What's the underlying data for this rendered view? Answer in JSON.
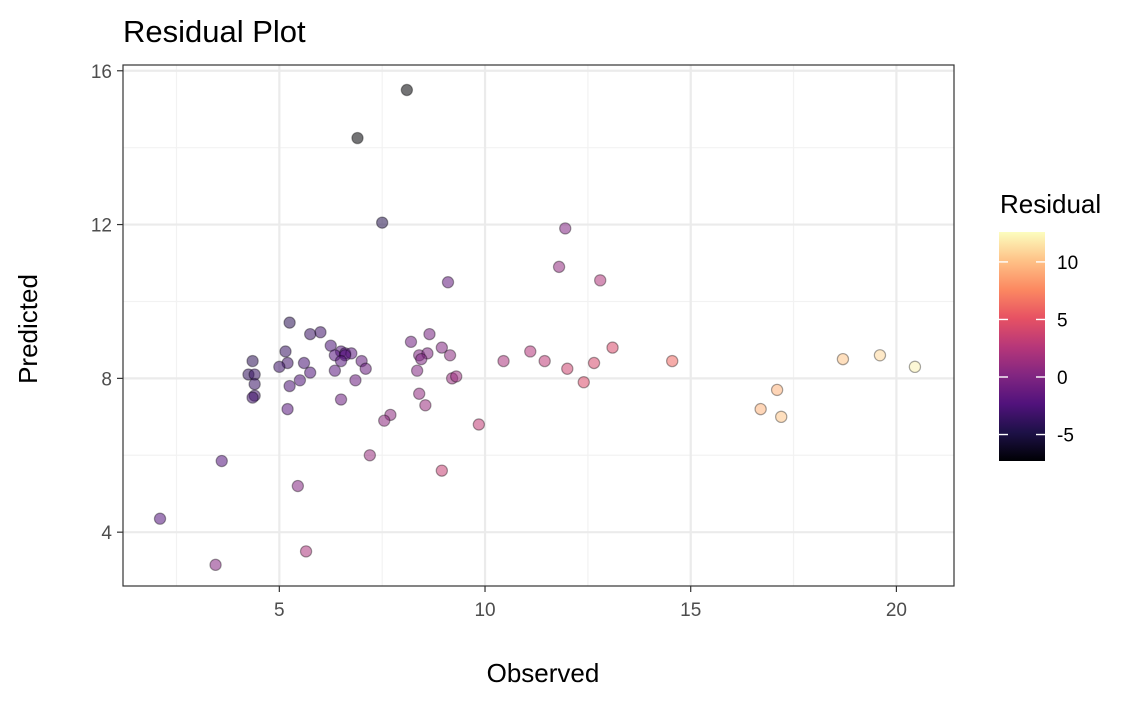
{
  "chart_data": {
    "type": "scatter",
    "title": "Residual Plot",
    "xlabel": "Observed",
    "ylabel": "Predicted",
    "xlim": [
      1.2,
      21.4
    ],
    "ylim": [
      2.6,
      16.15
    ],
    "x_ticks": [
      5,
      10,
      15,
      20
    ],
    "x_tick_labels": [
      "5",
      "10",
      "15",
      "20"
    ],
    "y_ticks": [
      4,
      8,
      12,
      16
    ],
    "y_tick_labels": [
      "4",
      "8",
      "12",
      "16"
    ],
    "grid": true,
    "legend": {
      "title": "Residual",
      "placement": "right",
      "range": [
        -7.3,
        12.6
      ],
      "ticks": [
        -5,
        0,
        5,
        10
      ],
      "tick_labels": [
        "-5",
        "0",
        "5",
        "10"
      ],
      "colormap": "magma",
      "colors": [
        "#000004",
        "#1d1147",
        "#51127c",
        "#822681",
        "#b73779",
        "#e75263",
        "#fc8961",
        "#fec287",
        "#fcfdbf"
      ]
    },
    "points": [
      {
        "x": 8.1,
        "y": 15.5
      },
      {
        "x": 6.9,
        "y": 14.25
      },
      {
        "x": 7.5,
        "y": 12.05
      },
      {
        "x": 11.95,
        "y": 11.9
      },
      {
        "x": 11.8,
        "y": 10.9
      },
      {
        "x": 12.8,
        "y": 10.55
      },
      {
        "x": 9.1,
        "y": 10.5
      },
      {
        "x": 5.25,
        "y": 9.45
      },
      {
        "x": 6.0,
        "y": 9.2
      },
      {
        "x": 5.75,
        "y": 9.15
      },
      {
        "x": 8.65,
        "y": 9.15
      },
      {
        "x": 8.2,
        "y": 8.95
      },
      {
        "x": 6.25,
        "y": 8.85
      },
      {
        "x": 8.95,
        "y": 8.8
      },
      {
        "x": 13.1,
        "y": 8.8
      },
      {
        "x": 5.15,
        "y": 8.7
      },
      {
        "x": 6.5,
        "y": 8.7
      },
      {
        "x": 6.6,
        "y": 8.65
      },
      {
        "x": 6.75,
        "y": 8.65
      },
      {
        "x": 11.1,
        "y": 8.7
      },
      {
        "x": 6.35,
        "y": 8.6
      },
      {
        "x": 6.6,
        "y": 8.6
      },
      {
        "x": 8.4,
        "y": 8.6
      },
      {
        "x": 8.6,
        "y": 8.65
      },
      {
        "x": 9.15,
        "y": 8.6
      },
      {
        "x": 4.35,
        "y": 8.45
      },
      {
        "x": 5.2,
        "y": 8.4
      },
      {
        "x": 5.6,
        "y": 8.4
      },
      {
        "x": 6.5,
        "y": 8.45
      },
      {
        "x": 7.0,
        "y": 8.45
      },
      {
        "x": 8.45,
        "y": 8.5
      },
      {
        "x": 10.45,
        "y": 8.45
      },
      {
        "x": 11.45,
        "y": 8.45
      },
      {
        "x": 12.65,
        "y": 8.4
      },
      {
        "x": 14.55,
        "y": 8.45
      },
      {
        "x": 18.7,
        "y": 8.5
      },
      {
        "x": 19.6,
        "y": 8.6
      },
      {
        "x": 20.45,
        "y": 8.3
      },
      {
        "x": 5.0,
        "y": 8.3
      },
      {
        "x": 6.35,
        "y": 8.2
      },
      {
        "x": 5.75,
        "y": 8.15
      },
      {
        "x": 7.1,
        "y": 8.25
      },
      {
        "x": 8.35,
        "y": 8.2
      },
      {
        "x": 12.0,
        "y": 8.25
      },
      {
        "x": 4.25,
        "y": 8.1
      },
      {
        "x": 4.4,
        "y": 8.1
      },
      {
        "x": 9.2,
        "y": 8.0
      },
      {
        "x": 9.3,
        "y": 8.05
      },
      {
        "x": 5.5,
        "y": 7.95
      },
      {
        "x": 6.85,
        "y": 7.95
      },
      {
        "x": 4.4,
        "y": 7.85
      },
      {
        "x": 12.4,
        "y": 7.9
      },
      {
        "x": 5.25,
        "y": 7.8
      },
      {
        "x": 17.1,
        "y": 7.7
      },
      {
        "x": 4.4,
        "y": 7.55
      },
      {
        "x": 4.35,
        "y": 7.5
      },
      {
        "x": 8.4,
        "y": 7.6
      },
      {
        "x": 6.5,
        "y": 7.45
      },
      {
        "x": 8.55,
        "y": 7.3
      },
      {
        "x": 5.2,
        "y": 7.2
      },
      {
        "x": 16.7,
        "y": 7.2
      },
      {
        "x": 7.7,
        "y": 7.05
      },
      {
        "x": 7.55,
        "y": 6.9
      },
      {
        "x": 17.2,
        "y": 7.0
      },
      {
        "x": 9.85,
        "y": 6.8
      },
      {
        "x": 7.2,
        "y": 6.0
      },
      {
        "x": 3.6,
        "y": 5.85
      },
      {
        "x": 8.95,
        "y": 5.6
      },
      {
        "x": 5.45,
        "y": 5.2
      },
      {
        "x": 2.1,
        "y": 4.35
      },
      {
        "x": 5.65,
        "y": 3.5
      },
      {
        "x": 3.45,
        "y": 3.15
      }
    ]
  }
}
